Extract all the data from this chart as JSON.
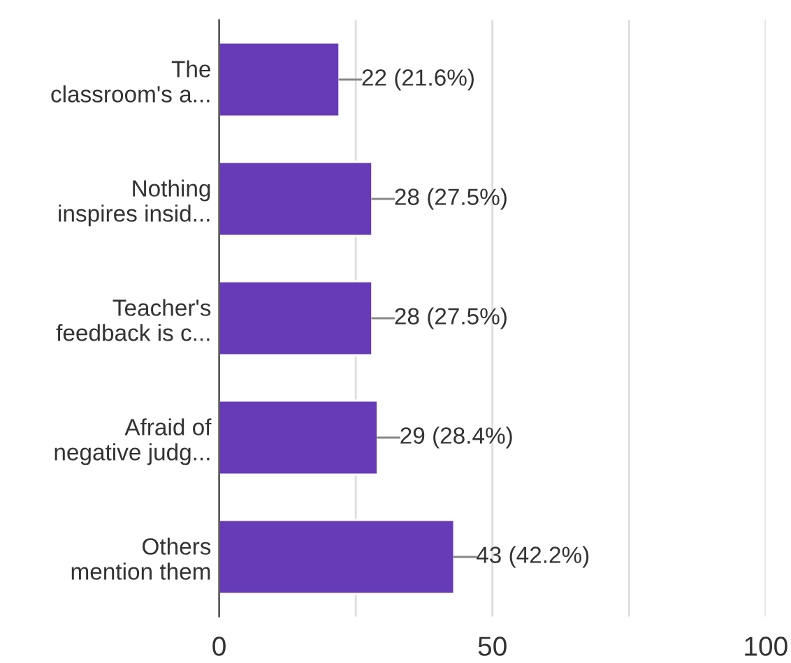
{
  "chart_data": {
    "type": "bar",
    "orientation": "horizontal",
    "categories": [
      "The\nclassroom's a...",
      "Nothing\ninspires insid...",
      "Teacher's\nfeedback is c...",
      "Afraid of\nnegative judg...",
      "Others\nmention them"
    ],
    "values": [
      22,
      28,
      28,
      29,
      43
    ],
    "value_labels": [
      "22 (21.6%)",
      "28 (27.5%)",
      "28 (27.5%)",
      "29 (28.4%)",
      "43 (42.2%)"
    ],
    "color": "#673ab7",
    "xlim": [
      0,
      100
    ],
    "xticks": [
      0,
      {
        "value": 25,
        "label": null
      },
      50,
      {
        "value": 75,
        "label": null
      },
      100
    ],
    "grid": "x",
    "legend": false
  }
}
